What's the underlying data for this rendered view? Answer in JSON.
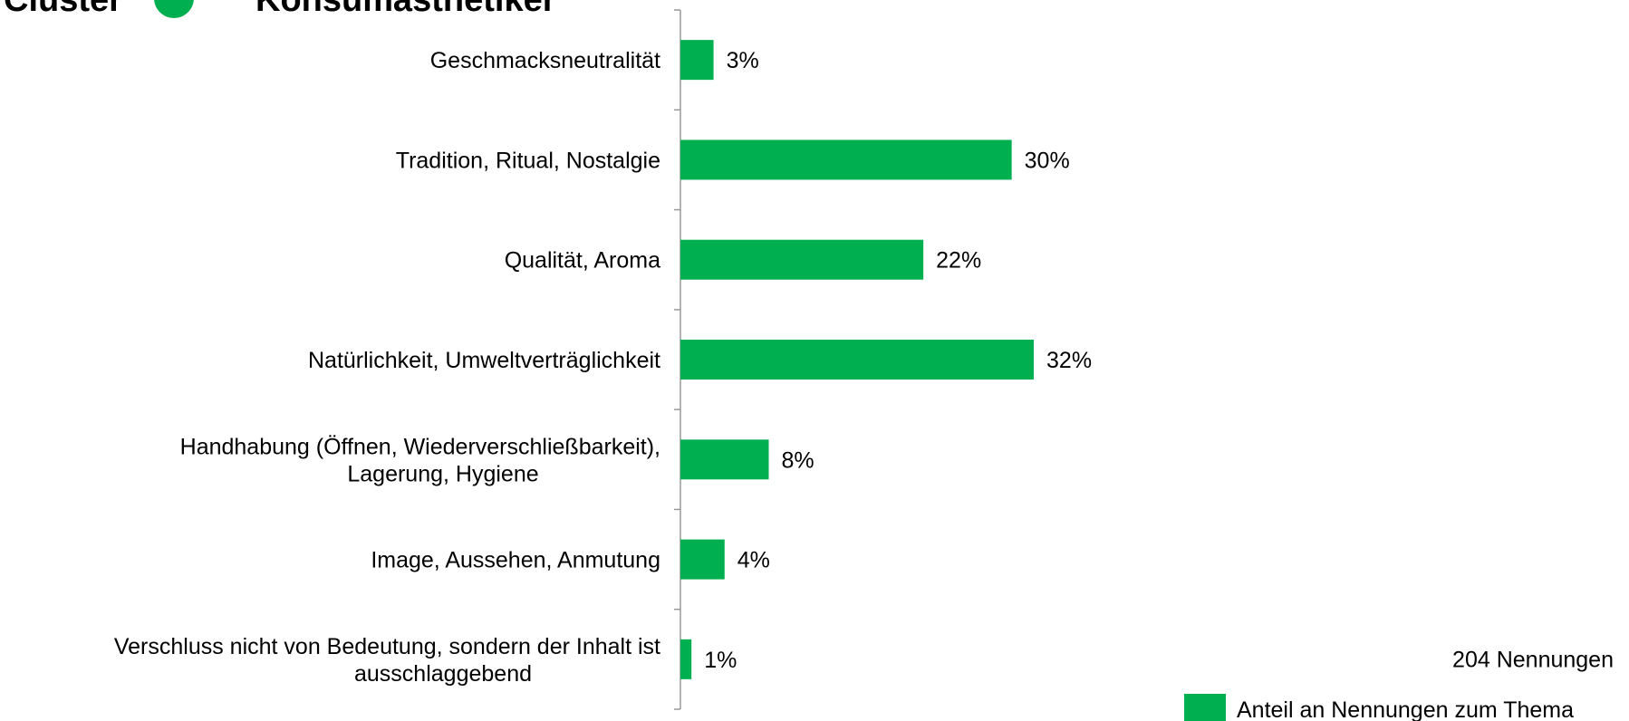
{
  "chart_data": {
    "type": "bar",
    "orientation": "horizontal",
    "title": "Cluster",
    "title_suffix": "Konsumästhetiker",
    "categories": [
      "Geschmacksneutralität",
      "Tradition, Ritual, Nostalgie",
      "Qualität, Aroma",
      "Natürlichkeit, Umweltverträglichkeit",
      "Handhabung (Öffnen, Wiederverschließbarkeit),\nLagerung, Hygiene",
      "Image, Aussehen, Anmutung",
      "Verschluss nicht von Bedeutung, sondern der Inhalt ist\nausschlaggebend"
    ],
    "series": [
      {
        "name": "Anteil an Nennungen zum Thema",
        "color": "#00b050",
        "values": [
          3,
          30,
          22,
          32,
          8,
          4,
          1
        ],
        "value_labels": [
          "3%",
          "30%",
          "22%",
          "32%",
          "8%",
          "4%",
          "1%"
        ]
      }
    ],
    "xlim": [
      0,
      85
    ],
    "annotation": "204 Nennungen",
    "legend": "bottom-right"
  }
}
